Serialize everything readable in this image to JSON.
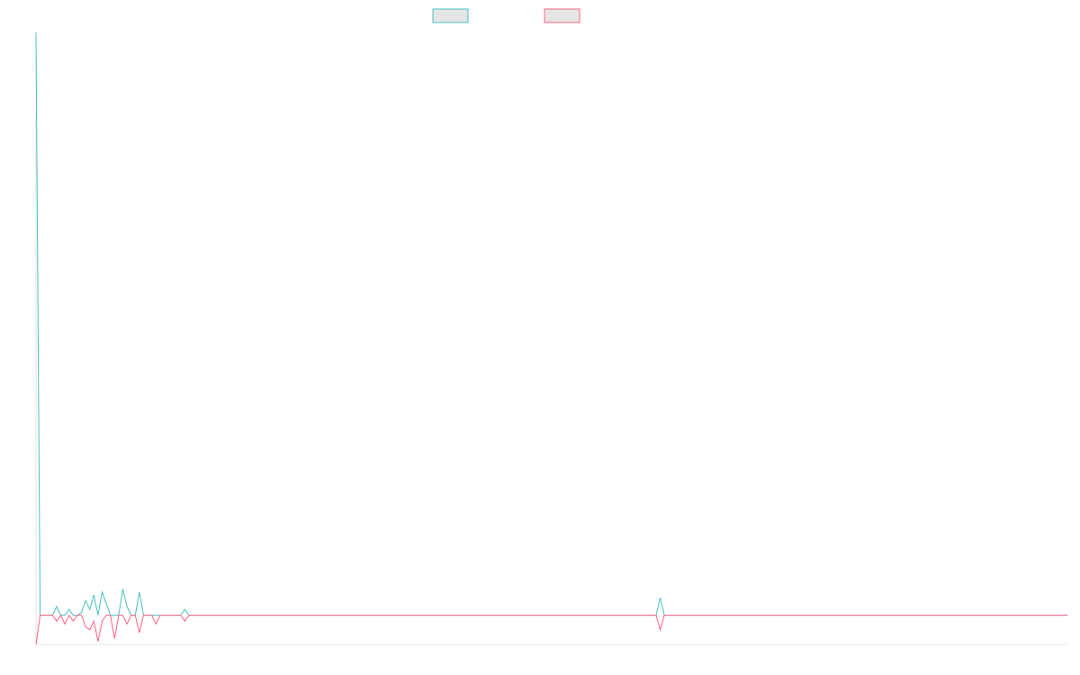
{
  "chart_data": {
    "type": "line",
    "title": "",
    "xlabel": "",
    "ylabel": "",
    "grid": false,
    "legend": "top-center",
    "x_range": [
      0,
      499
    ],
    "ylim": [
      -1,
      20
    ],
    "colors": {
      "series_1": "#4bc0c0",
      "series_2": "#ff6384"
    },
    "series": [
      {
        "color": "#4bc0c0",
        "fill": "#e5e5e5",
        "points": [
          [
            0,
            20
          ],
          [
            2,
            0
          ],
          [
            4,
            0
          ],
          [
            6,
            0
          ],
          [
            8,
            0
          ],
          [
            10,
            0.3
          ],
          [
            12,
            0
          ],
          [
            14,
            0
          ],
          [
            16,
            0.2
          ],
          [
            18,
            0
          ],
          [
            20,
            0
          ],
          [
            22,
            0.1
          ],
          [
            24,
            0.5
          ],
          [
            26,
            0.2
          ],
          [
            28,
            0.7
          ],
          [
            30,
            0
          ],
          [
            32,
            0.8
          ],
          [
            34,
            0.4
          ],
          [
            36,
            0
          ],
          [
            38,
            0
          ],
          [
            40,
            0
          ],
          [
            42,
            0.9
          ],
          [
            44,
            0.3
          ],
          [
            46,
            0
          ],
          [
            48,
            0
          ],
          [
            50,
            0.8
          ],
          [
            52,
            0
          ],
          [
            54,
            0
          ],
          [
            56,
            0
          ],
          [
            58,
            0
          ],
          [
            60,
            0
          ],
          [
            62,
            0
          ],
          [
            64,
            0
          ],
          [
            66,
            0
          ],
          [
            68,
            0
          ],
          [
            70,
            0
          ],
          [
            72,
            0.2
          ],
          [
            74,
            0
          ],
          [
            76,
            0
          ],
          [
            78,
            0
          ],
          [
            80,
            0
          ],
          [
            82,
            0
          ],
          [
            84,
            0
          ],
          [
            86,
            0
          ],
          [
            88,
            0
          ],
          [
            90,
            0
          ],
          [
            92,
            0
          ],
          [
            94,
            0
          ],
          [
            96,
            0
          ],
          [
            98,
            0
          ],
          [
            100,
            0
          ],
          [
            102,
            0
          ],
          [
            104,
            0
          ],
          [
            106,
            0
          ],
          [
            108,
            0
          ],
          [
            110,
            0
          ],
          [
            112,
            0
          ],
          [
            114,
            0
          ],
          [
            116,
            0
          ],
          [
            118,
            0
          ],
          [
            120,
            0
          ],
          [
            122,
            0
          ],
          [
            124,
            0
          ],
          [
            126,
            0
          ],
          [
            128,
            0
          ],
          [
            130,
            0
          ],
          [
            132,
            0
          ],
          [
            134,
            0
          ],
          [
            136,
            0
          ],
          [
            138,
            0
          ],
          [
            140,
            0
          ],
          [
            142,
            0
          ],
          [
            144,
            0
          ],
          [
            146,
            0
          ],
          [
            148,
            0
          ],
          [
            150,
            0
          ],
          [
            152,
            0
          ],
          [
            154,
            0
          ],
          [
            156,
            0
          ],
          [
            158,
            0
          ],
          [
            160,
            0
          ],
          [
            162,
            0
          ],
          [
            164,
            0
          ],
          [
            166,
            0
          ],
          [
            168,
            0
          ],
          [
            170,
            0
          ],
          [
            172,
            0
          ],
          [
            174,
            0
          ],
          [
            176,
            0
          ],
          [
            178,
            0
          ],
          [
            180,
            0
          ],
          [
            182,
            0
          ],
          [
            184,
            0
          ],
          [
            186,
            0
          ],
          [
            188,
            0
          ],
          [
            190,
            0
          ],
          [
            192,
            0
          ],
          [
            194,
            0
          ],
          [
            196,
            0
          ],
          [
            198,
            0
          ],
          [
            200,
            0
          ],
          [
            202,
            0
          ],
          [
            204,
            0
          ],
          [
            206,
            0
          ],
          [
            208,
            0
          ],
          [
            210,
            0
          ],
          [
            212,
            0
          ],
          [
            214,
            0
          ],
          [
            216,
            0
          ],
          [
            218,
            0
          ],
          [
            220,
            0
          ],
          [
            222,
            0
          ],
          [
            224,
            0
          ],
          [
            226,
            0
          ],
          [
            228,
            0
          ],
          [
            230,
            0
          ],
          [
            232,
            0
          ],
          [
            234,
            0
          ],
          [
            236,
            0
          ],
          [
            238,
            0
          ],
          [
            240,
            0
          ],
          [
            242,
            0
          ],
          [
            244,
            0
          ],
          [
            246,
            0
          ],
          [
            248,
            0
          ],
          [
            250,
            0
          ],
          [
            252,
            0
          ],
          [
            254,
            0
          ],
          [
            256,
            0
          ],
          [
            258,
            0
          ],
          [
            260,
            0
          ],
          [
            262,
            0
          ],
          [
            264,
            0
          ],
          [
            266,
            0
          ],
          [
            268,
            0
          ],
          [
            270,
            0
          ],
          [
            272,
            0
          ],
          [
            274,
            0
          ],
          [
            276,
            0
          ],
          [
            278,
            0
          ],
          [
            280,
            0
          ],
          [
            282,
            0
          ],
          [
            284,
            0
          ],
          [
            286,
            0
          ],
          [
            288,
            0
          ],
          [
            290,
            0
          ],
          [
            292,
            0
          ],
          [
            294,
            0
          ],
          [
            296,
            0
          ],
          [
            298,
            0
          ],
          [
            300,
            0
          ],
          [
            302,
            0.6
          ],
          [
            304,
            0
          ],
          [
            306,
            0
          ],
          [
            308,
            0
          ],
          [
            310,
            0
          ],
          [
            312,
            0
          ],
          [
            314,
            0
          ],
          [
            316,
            0
          ],
          [
            318,
            0
          ],
          [
            320,
            0
          ],
          [
            499,
            0
          ]
        ]
      },
      {
        "color": "#ff6384",
        "fill": "#e5e5e5",
        "points": [
          [
            0,
            -1
          ],
          [
            2,
            0
          ],
          [
            4,
            0
          ],
          [
            6,
            0
          ],
          [
            8,
            0
          ],
          [
            10,
            -0.2
          ],
          [
            12,
            0
          ],
          [
            14,
            -0.3
          ],
          [
            16,
            0
          ],
          [
            18,
            -0.2
          ],
          [
            20,
            0
          ],
          [
            22,
            0
          ],
          [
            24,
            -0.4
          ],
          [
            26,
            -0.5
          ],
          [
            28,
            -0.2
          ],
          [
            30,
            -0.9
          ],
          [
            32,
            -0.2
          ],
          [
            34,
            0
          ],
          [
            36,
            0
          ],
          [
            38,
            -0.8
          ],
          [
            40,
            0
          ],
          [
            42,
            0
          ],
          [
            44,
            -0.3
          ],
          [
            46,
            0
          ],
          [
            48,
            0
          ],
          [
            50,
            -0.6
          ],
          [
            52,
            0
          ],
          [
            54,
            0
          ],
          [
            56,
            0
          ],
          [
            58,
            -0.3
          ],
          [
            60,
            0
          ],
          [
            62,
            0
          ],
          [
            64,
            0
          ],
          [
            66,
            0
          ],
          [
            68,
            0
          ],
          [
            70,
            0
          ],
          [
            72,
            -0.2
          ],
          [
            74,
            0
          ],
          [
            76,
            0
          ],
          [
            78,
            0
          ],
          [
            80,
            0
          ],
          [
            82,
            0
          ],
          [
            84,
            0
          ],
          [
            86,
            0
          ],
          [
            88,
            0
          ],
          [
            90,
            0
          ],
          [
            92,
            0
          ],
          [
            94,
            0
          ],
          [
            96,
            0
          ],
          [
            98,
            0
          ],
          [
            100,
            0
          ],
          [
            102,
            0
          ],
          [
            104,
            0
          ],
          [
            106,
            0
          ],
          [
            108,
            0
          ],
          [
            110,
            0
          ],
          [
            112,
            0
          ],
          [
            114,
            0
          ],
          [
            116,
            0
          ],
          [
            118,
            0
          ],
          [
            120,
            0
          ],
          [
            122,
            0
          ],
          [
            124,
            0
          ],
          [
            126,
            0
          ],
          [
            128,
            0
          ],
          [
            130,
            0
          ],
          [
            132,
            0
          ],
          [
            134,
            0
          ],
          [
            136,
            0
          ],
          [
            138,
            0
          ],
          [
            140,
            0
          ],
          [
            142,
            0
          ],
          [
            144,
            0
          ],
          [
            146,
            0
          ],
          [
            148,
            0
          ],
          [
            150,
            0
          ],
          [
            152,
            0
          ],
          [
            154,
            0
          ],
          [
            156,
            0
          ],
          [
            158,
            0
          ],
          [
            160,
            0
          ],
          [
            162,
            0
          ],
          [
            164,
            0
          ],
          [
            166,
            0
          ],
          [
            168,
            0
          ],
          [
            170,
            0
          ],
          [
            172,
            0
          ],
          [
            174,
            0
          ],
          [
            176,
            0
          ],
          [
            178,
            0
          ],
          [
            180,
            0
          ],
          [
            182,
            0
          ],
          [
            184,
            0
          ],
          [
            186,
            0
          ],
          [
            188,
            0
          ],
          [
            190,
            0
          ],
          [
            192,
            0
          ],
          [
            194,
            0
          ],
          [
            196,
            0
          ],
          [
            198,
            0
          ],
          [
            200,
            0
          ],
          [
            202,
            0
          ],
          [
            204,
            0
          ],
          [
            206,
            0
          ],
          [
            208,
            0
          ],
          [
            210,
            0
          ],
          [
            212,
            0
          ],
          [
            214,
            0
          ],
          [
            216,
            0
          ],
          [
            218,
            0
          ],
          [
            220,
            0
          ],
          [
            222,
            0
          ],
          [
            224,
            0
          ],
          [
            226,
            0
          ],
          [
            228,
            0
          ],
          [
            230,
            0
          ],
          [
            232,
            0
          ],
          [
            234,
            0
          ],
          [
            236,
            0
          ],
          [
            238,
            0
          ],
          [
            240,
            0
          ],
          [
            242,
            0
          ],
          [
            244,
            0
          ],
          [
            246,
            0
          ],
          [
            248,
            0
          ],
          [
            250,
            0
          ],
          [
            252,
            0
          ],
          [
            254,
            0
          ],
          [
            256,
            0
          ],
          [
            258,
            0
          ],
          [
            260,
            0
          ],
          [
            262,
            0
          ],
          [
            264,
            0
          ],
          [
            266,
            0
          ],
          [
            268,
            0
          ],
          [
            270,
            0
          ],
          [
            272,
            0
          ],
          [
            274,
            0
          ],
          [
            276,
            0
          ],
          [
            278,
            0
          ],
          [
            280,
            0
          ],
          [
            282,
            0
          ],
          [
            284,
            0
          ],
          [
            286,
            0
          ],
          [
            288,
            0
          ],
          [
            290,
            0
          ],
          [
            292,
            0
          ],
          [
            294,
            0
          ],
          [
            296,
            0
          ],
          [
            298,
            0
          ],
          [
            300,
            0
          ],
          [
            302,
            -0.5
          ],
          [
            304,
            0
          ],
          [
            306,
            0
          ],
          [
            308,
            0
          ],
          [
            310,
            0
          ],
          [
            312,
            0
          ],
          [
            314,
            0
          ],
          [
            316,
            0
          ],
          [
            318,
            0
          ],
          [
            320,
            0
          ],
          [
            499,
            0
          ]
        ]
      }
    ]
  }
}
